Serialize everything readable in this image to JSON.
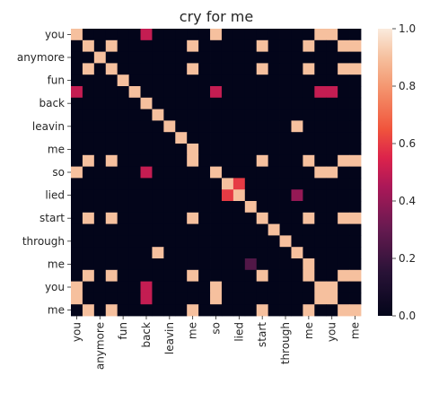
{
  "chart_data": {
    "type": "heatmap",
    "title": "cry for me",
    "row_tick_labels": [
      "you",
      "anymore",
      "fun",
      "back",
      "leavin",
      "me",
      "so",
      "lied",
      "start",
      "through",
      "me",
      "you",
      "me"
    ],
    "col_tick_labels": [
      "you",
      "anymore",
      "fun",
      "back",
      "leavin",
      "me",
      "so",
      "lied",
      "start",
      "through",
      "me",
      "you",
      "me"
    ],
    "n_rows": 25,
    "n_cols": 25,
    "values": [
      [
        0.9,
        0,
        0,
        0,
        0,
        0,
        0.5,
        0,
        0,
        0,
        0,
        0,
        0.9,
        0,
        0,
        0,
        0,
        0,
        0,
        0,
        0,
        0.9,
        0.9,
        0,
        0
      ],
      [
        0,
        0.9,
        0,
        0.9,
        0,
        0,
        0,
        0,
        0,
        0,
        0.9,
        0,
        0,
        0,
        0,
        0,
        0.9,
        0,
        0,
        0,
        0.9,
        0,
        0,
        0.9,
        0.9
      ],
      [
        0,
        0,
        0.9,
        0,
        0,
        0,
        0,
        0,
        0,
        0,
        0,
        0,
        0,
        0,
        0,
        0,
        0,
        0,
        0,
        0,
        0,
        0,
        0,
        0,
        0
      ],
      [
        0,
        0.9,
        0,
        0.9,
        0,
        0,
        0,
        0,
        0,
        0,
        0.9,
        0,
        0,
        0,
        0,
        0,
        0.9,
        0,
        0,
        0,
        0.9,
        0,
        0,
        0.9,
        0.9
      ],
      [
        0,
        0,
        0,
        0,
        0.9,
        0,
        0,
        0,
        0,
        0,
        0,
        0,
        0,
        0,
        0,
        0,
        0,
        0,
        0,
        0,
        0,
        0,
        0,
        0,
        0
      ],
      [
        0.5,
        0,
        0,
        0,
        0,
        0.9,
        0,
        0,
        0,
        0,
        0,
        0,
        0.5,
        0,
        0,
        0,
        0,
        0,
        0,
        0,
        0,
        0.5,
        0.5,
        0,
        0
      ],
      [
        0,
        0,
        0,
        0,
        0,
        0,
        0.9,
        0,
        0,
        0,
        0,
        0,
        0,
        0,
        0,
        0,
        0,
        0,
        0,
        0,
        0,
        0,
        0,
        0,
        0
      ],
      [
        0,
        0,
        0,
        0,
        0,
        0,
        0,
        0.9,
        0,
        0,
        0,
        0,
        0,
        0,
        0,
        0,
        0,
        0,
        0,
        0,
        0,
        0,
        0,
        0,
        0
      ],
      [
        0,
        0,
        0,
        0,
        0,
        0,
        0,
        0,
        0.9,
        0,
        0,
        0,
        0,
        0,
        0,
        0,
        0,
        0,
        0,
        0.9,
        0,
        0,
        0,
        0,
        0
      ],
      [
        0,
        0,
        0,
        0,
        0,
        0,
        0,
        0,
        0,
        0.9,
        0,
        0,
        0,
        0,
        0,
        0,
        0,
        0,
        0,
        0,
        0,
        0,
        0,
        0,
        0
      ],
      [
        0,
        0,
        0,
        0,
        0,
        0,
        0,
        0,
        0,
        0,
        0.9,
        0,
        0,
        0,
        0,
        0,
        0,
        0,
        0,
        0,
        0,
        0,
        0,
        0,
        0
      ],
      [
        0,
        0.9,
        0,
        0.9,
        0,
        0,
        0,
        0,
        0,
        0,
        0.9,
        0,
        0,
        0,
        0,
        0,
        0.9,
        0,
        0,
        0,
        0.9,
        0,
        0,
        0.9,
        0.9
      ],
      [
        0.9,
        0,
        0,
        0,
        0,
        0,
        0.5,
        0,
        0,
        0,
        0,
        0,
        0.9,
        0,
        0,
        0,
        0,
        0,
        0,
        0,
        0,
        0.9,
        0.9,
        0,
        0
      ],
      [
        0,
        0,
        0,
        0,
        0,
        0,
        0,
        0,
        0,
        0,
        0,
        0,
        0,
        0.9,
        0.6,
        0,
        0,
        0,
        0,
        0,
        0,
        0,
        0,
        0,
        0
      ],
      [
        0,
        0,
        0,
        0,
        0,
        0,
        0,
        0,
        0,
        0,
        0,
        0,
        0,
        0.6,
        0.9,
        0,
        0,
        0,
        0,
        0.4,
        0,
        0,
        0,
        0,
        0
      ],
      [
        0,
        0,
        0,
        0,
        0,
        0,
        0,
        0,
        0,
        0,
        0,
        0,
        0,
        0,
        0,
        0.9,
        0,
        0,
        0,
        0,
        0,
        0,
        0,
        0,
        0
      ],
      [
        0,
        0.9,
        0,
        0.9,
        0,
        0,
        0,
        0,
        0,
        0,
        0.9,
        0,
        0,
        0,
        0,
        0,
        0.9,
        0,
        0,
        0,
        0.9,
        0,
        0,
        0.9,
        0.9
      ],
      [
        0,
        0,
        0,
        0,
        0,
        0,
        0,
        0,
        0,
        0,
        0,
        0,
        0,
        0,
        0,
        0,
        0,
        0.9,
        0,
        0,
        0,
        0,
        0,
        0,
        0
      ],
      [
        0,
        0,
        0,
        0,
        0,
        0,
        0,
        0,
        0,
        0,
        0,
        0,
        0,
        0,
        0,
        0,
        0,
        0,
        0.9,
        0,
        0,
        0,
        0,
        0,
        0
      ],
      [
        0,
        0,
        0,
        0,
        0,
        0,
        0,
        0.9,
        0,
        0,
        0,
        0,
        0,
        0,
        0,
        0,
        0,
        0,
        0,
        0.9,
        0,
        0,
        0,
        0,
        0
      ],
      [
        0,
        0,
        0,
        0,
        0,
        0,
        0,
        0,
        0,
        0,
        0,
        0,
        0,
        0,
        0,
        0.25,
        0,
        0,
        0,
        0,
        0.9,
        0,
        0,
        0,
        0
      ],
      [
        0,
        0.9,
        0,
        0.9,
        0,
        0,
        0,
        0,
        0,
        0,
        0.9,
        0,
        0,
        0,
        0,
        0,
        0.9,
        0,
        0,
        0,
        0.9,
        0,
        0,
        0.9,
        0.9
      ],
      [
        0.9,
        0,
        0,
        0,
        0,
        0,
        0.5,
        0,
        0,
        0,
        0,
        0,
        0.9,
        0,
        0,
        0,
        0,
        0,
        0,
        0,
        0,
        0.9,
        0.9,
        0,
        0
      ],
      [
        0.9,
        0,
        0,
        0,
        0,
        0,
        0.5,
        0,
        0,
        0,
        0,
        0,
        0.9,
        0,
        0,
        0,
        0,
        0,
        0,
        0,
        0,
        0.9,
        0.9,
        0,
        0
      ],
      [
        0,
        0.9,
        0,
        0.9,
        0,
        0,
        0,
        0,
        0,
        0,
        0.9,
        0,
        0,
        0,
        0,
        0,
        0.9,
        0,
        0,
        0,
        0.9,
        0,
        0,
        0.9,
        0.9
      ]
    ],
    "colorbar": {
      "min": 0.0,
      "max": 1.0,
      "tick_labels": [
        "0.0",
        "0.2",
        "0.4",
        "0.6",
        "0.8",
        "1.0"
      ],
      "colormap": "rocket",
      "low_color": "#03051a",
      "high_color": "#faebdd"
    }
  }
}
